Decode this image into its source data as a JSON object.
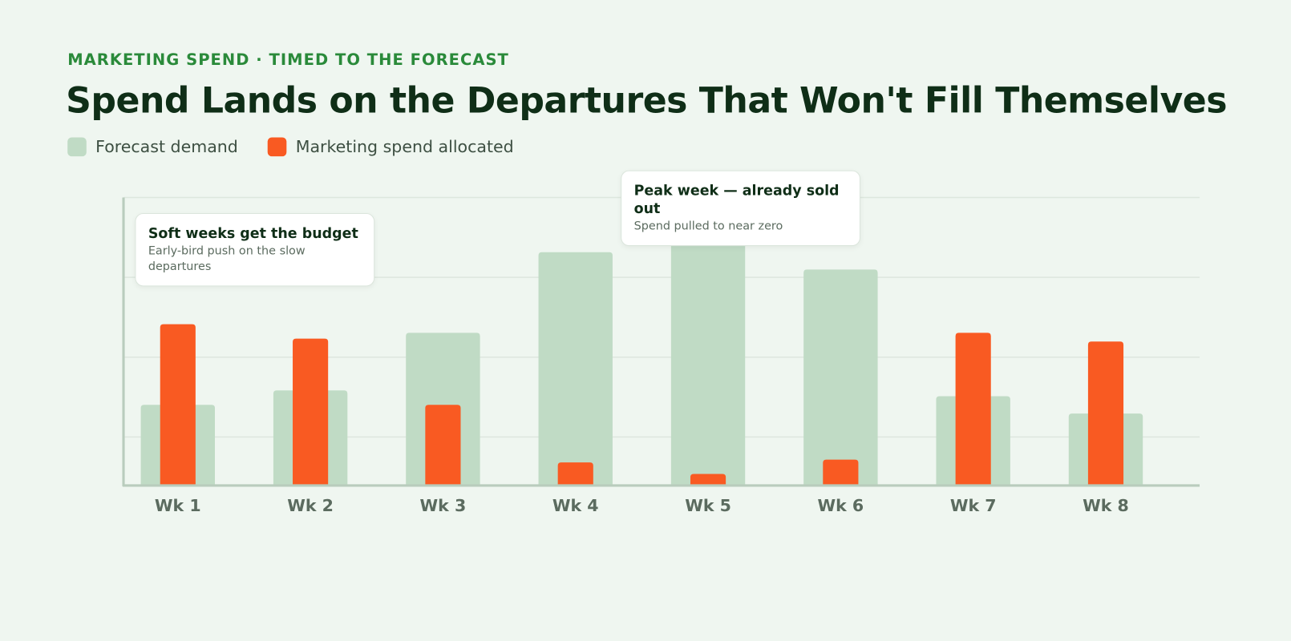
{
  "kicker": "MARKETING SPEND · TIMED TO THE FORECAST",
  "chart_data": {
    "type": "bar",
    "title": "Spend Lands on the Departures That Won't Fill Themselves",
    "categories": [
      "Wk 1",
      "Wk 2",
      "Wk 3",
      "Wk 4",
      "Wk 5",
      "Wk 6",
      "Wk 7",
      "Wk 8"
    ],
    "series": [
      {
        "name": "Forecast demand",
        "color": "#c0dbc5",
        "values": [
          28,
          33,
          53,
          81,
          88,
          75,
          31,
          25
        ]
      },
      {
        "name": "Marketing spend allocated",
        "color": "#f95a22",
        "values": [
          56,
          51,
          28,
          8,
          4,
          9,
          53,
          50
        ]
      }
    ],
    "ylim": [
      0,
      100
    ],
    "annotations": [
      {
        "title": "Soft weeks get the budget",
        "text": "Early-bird push on the slow departures"
      },
      {
        "title": "Peak week — already sold out",
        "text": "Spend pulled to near zero"
      }
    ]
  }
}
